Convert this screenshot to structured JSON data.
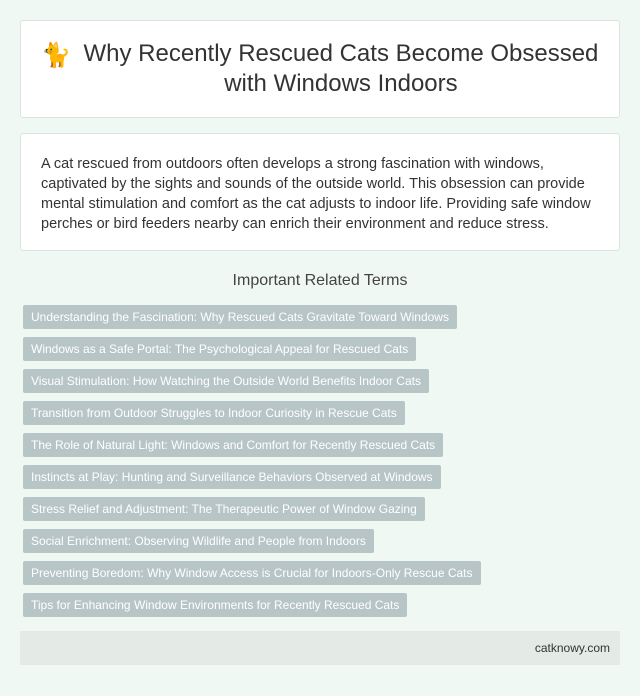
{
  "header": {
    "icon": "cat-icon",
    "icon_glyph": "🐈",
    "title": "Why Recently Rescued Cats Become Obsessed with Windows Indoors"
  },
  "summary": {
    "text": "A cat rescued from outdoors often develops a strong fascination with windows, captivated by the sights and sounds of the outside world. This obsession can provide mental stimulation and comfort as the cat adjusts to indoor life. Providing safe window perches or bird feeders nearby can enrich their environment and reduce stress."
  },
  "related": {
    "heading": "Important Related Terms",
    "terms": [
      "Understanding the Fascination: Why Rescued Cats Gravitate Toward Windows",
      "Windows as a Safe Portal: The Psychological Appeal for Rescued Cats",
      "Visual Stimulation: How Watching the Outside World Benefits Indoor Cats",
      "Transition from Outdoor Struggles to Indoor Curiosity in Rescue Cats",
      "The Role of Natural Light: Windows and Comfort for Recently Rescued Cats",
      "Instincts at Play: Hunting and Surveillance Behaviors Observed at Windows",
      "Stress Relief and Adjustment: The Therapeutic Power of Window Gazing",
      "Social Enrichment: Observing Wildlife and People from Indoors",
      "Preventing Boredom: Why Window Access is Crucial for Indoors-Only Rescue Cats",
      "Tips for Enhancing Window Environments for Recently Rescued Cats"
    ]
  },
  "footer": {
    "site": "catknowy.com"
  },
  "colors": {
    "background": "#f0f8f4",
    "term_tag": "#b7c5c7",
    "footer_bg": "#e4ebe7"
  }
}
